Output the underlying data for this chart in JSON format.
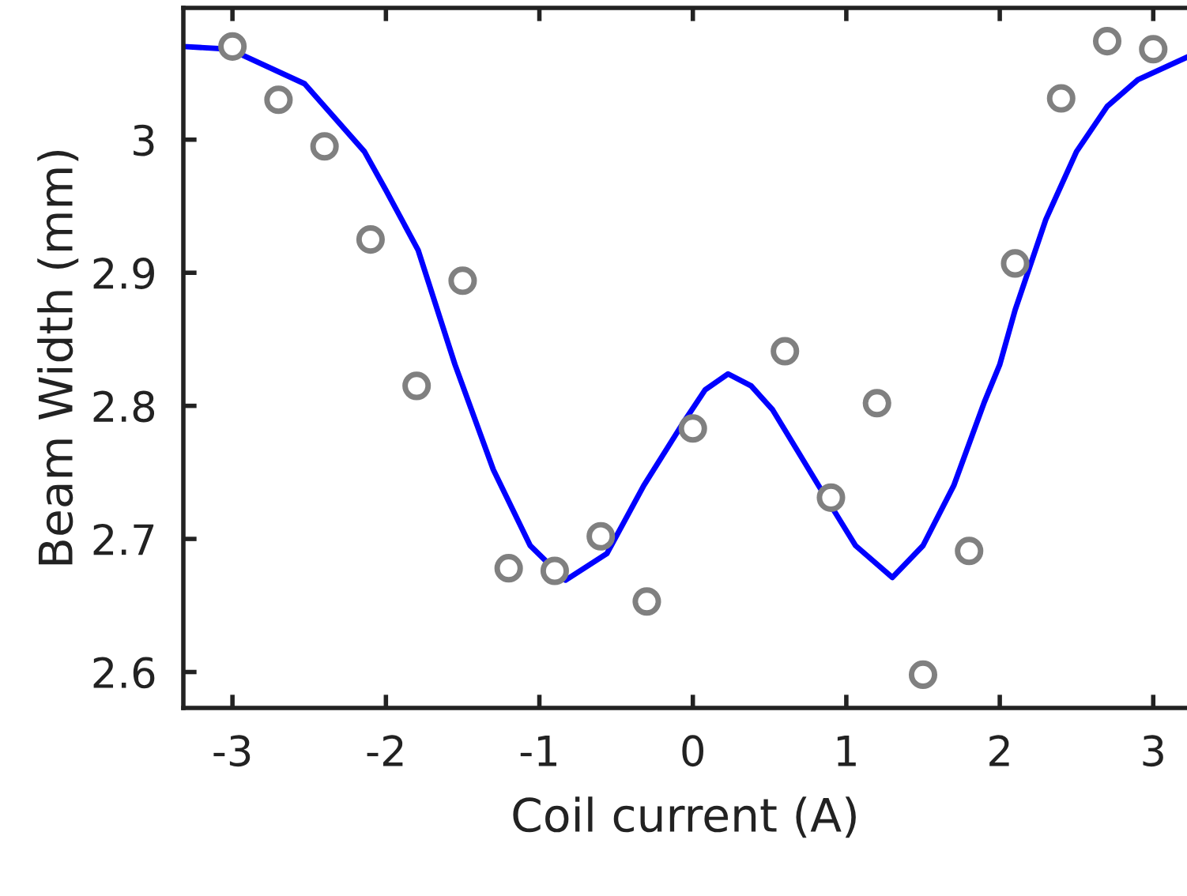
{
  "chart_data": {
    "type": "scatter",
    "xlabel": "Coil current (A)",
    "ylabel": "Beam Width (mm)",
    "xlim": [
      -3.32,
      3.22
    ],
    "ylim": [
      2.573,
      3.099
    ],
    "xticks": [
      -3,
      -2,
      -1,
      0,
      1,
      2,
      3
    ],
    "yticks": [
      2.6,
      2.7,
      2.8,
      2.9,
      3
    ],
    "grid": false,
    "legend": false,
    "series": [
      {
        "color": "#808080",
        "marker": "circle",
        "x": [
          -3,
          -2.7,
          -2.4,
          -2.1,
          -1.8,
          -1.5,
          -1.2,
          -0.9,
          -0.6,
          -0.3,
          0,
          0.6,
          0.9,
          1.2,
          1.5,
          1.8,
          2.1,
          2.4,
          2.7,
          3
        ],
        "values": [
          3.07,
          3.03,
          2.995,
          2.925,
          2.815,
          2.894,
          2.678,
          2.676,
          2.702,
          2.653,
          2.783,
          2.841,
          2.731,
          2.802,
          2.598,
          2.691,
          2.907,
          3.031,
          3.074,
          3.068
        ]
      },
      {
        "type": "line",
        "color": "#0000ff",
        "line_style": "solid",
        "marker": "none",
        "x": [
          -3.32,
          -3.02,
          -2.53,
          -2.14,
          -2.0,
          -1.79,
          -1.55,
          -1.3,
          -1.06,
          -0.83,
          -0.56,
          -0.32,
          -0.07,
          0.08,
          0.23,
          0.38,
          0.52,
          0.82,
          1.06,
          1.3,
          1.5,
          1.7,
          1.9,
          2.0,
          2.1,
          2.3,
          2.5,
          2.7,
          2.9,
          3.22
        ],
        "values": [
          3.07,
          3.068,
          3.042,
          2.991,
          2.962,
          2.917,
          2.831,
          2.752,
          2.695,
          2.669,
          2.689,
          2.74,
          2.786,
          2.812,
          2.824,
          2.815,
          2.797,
          2.74,
          2.695,
          2.671,
          2.695,
          2.74,
          2.803,
          2.831,
          2.872,
          2.94,
          2.991,
          3.025,
          3.045,
          3.062
        ]
      }
    ]
  }
}
